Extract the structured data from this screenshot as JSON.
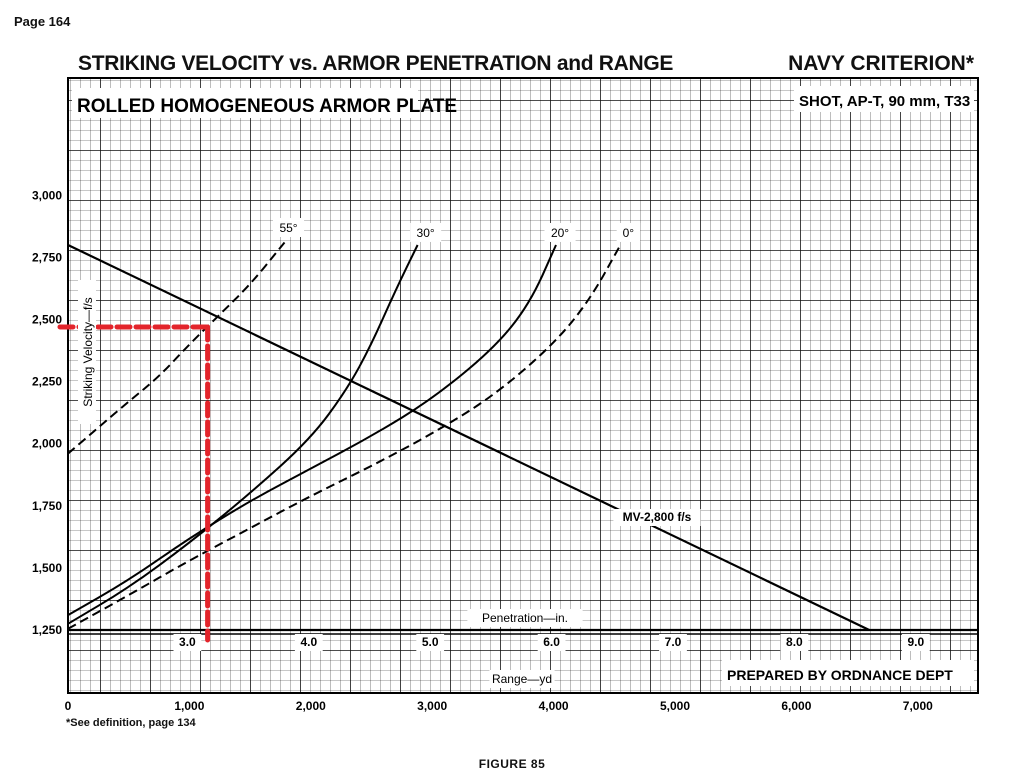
{
  "page": {
    "page_number": "Page 164",
    "title": "STRIKING VELOCITY vs. ARMOR PENETRATION and RANGE",
    "criterion": "NAVY CRITERION*",
    "figure": "FIGURE 85",
    "footnote": "*See definition, page 134"
  },
  "chart_data": {
    "type": "line",
    "plate_label": "ROLLED HOMOGENEOUS ARMOR PLATE",
    "projectile_label": "SHOT, AP-T, 90 mm, T33",
    "prepared_by": "PREPARED BY ORDNANCE DEPT",
    "ylabel": "Striking Velocity—f/s",
    "xlabel_range": "Range—yd",
    "xlabel_penetration": "Penetration—in.",
    "ylim": [
      1250,
      3500
    ],
    "xlim_range": [
      0,
      7500
    ],
    "y_ticks": [
      {
        "value": 1250,
        "label": "1,250"
      },
      {
        "value": 1500,
        "label": "1,500"
      },
      {
        "value": 1750,
        "label": "1,750"
      },
      {
        "value": 2000,
        "label": "2,000"
      },
      {
        "value": 2250,
        "label": "2,250"
      },
      {
        "value": 2500,
        "label": "2,500"
      },
      {
        "value": 2750,
        "label": "2,750"
      },
      {
        "value": 3000,
        "label": "3,000"
      }
    ],
    "range_ticks": [
      {
        "value": 0,
        "label": "0"
      },
      {
        "value": 1000,
        "label": "1,000"
      },
      {
        "value": 2000,
        "label": "2,000"
      },
      {
        "value": 3000,
        "label": "3,000"
      },
      {
        "value": 4000,
        "label": "4,000"
      },
      {
        "value": 5000,
        "label": "5,000"
      },
      {
        "value": 6000,
        "label": "6,000"
      },
      {
        "value": 7000,
        "label": "7,000"
      }
    ],
    "penetration_ticks": [
      {
        "value": 3.0,
        "label": "3.0",
        "range_equiv": 1000
      },
      {
        "value": 4.0,
        "label": "4.0",
        "range_equiv": 2000
      },
      {
        "value": 5.0,
        "label": "5.0",
        "range_equiv": 3000
      },
      {
        "value": 6.0,
        "label": "6.0",
        "range_equiv": 4000
      },
      {
        "value": 7.0,
        "label": "7.0",
        "range_equiv": 5000
      },
      {
        "value": 8.0,
        "label": "8.0",
        "range_equiv": 6000
      },
      {
        "value": 9.0,
        "label": "9.0",
        "range_equiv": 7000
      }
    ],
    "velocity_range_line": {
      "name": "MV-2,800 f/s",
      "range_yd": [
        0,
        6600
      ],
      "velocity_fs": [
        2800,
        1250
      ]
    },
    "penetration_curves": [
      {
        "name": "55°",
        "dashed": true,
        "points": [
          [
            0,
            1960
          ],
          [
            250,
            2065
          ],
          [
            500,
            2170
          ],
          [
            750,
            2270
          ],
          [
            1000,
            2400
          ],
          [
            1250,
            2520
          ],
          [
            1500,
            2640
          ],
          [
            1750,
            2790
          ],
          [
            1800,
            2820
          ]
        ]
      },
      {
        "name": "30°",
        "dashed": false,
        "points": [
          [
            0,
            1275
          ],
          [
            500,
            1420
          ],
          [
            1000,
            1600
          ],
          [
            1500,
            1800
          ],
          [
            2000,
            2020
          ],
          [
            2300,
            2220
          ],
          [
            2500,
            2400
          ],
          [
            2700,
            2620
          ],
          [
            2880,
            2800
          ]
        ]
      },
      {
        "name": "20°",
        "dashed": false,
        "points": [
          [
            0,
            1310
          ],
          [
            500,
            1450
          ],
          [
            1000,
            1620
          ],
          [
            1500,
            1770
          ],
          [
            2000,
            1900
          ],
          [
            2500,
            2030
          ],
          [
            3000,
            2180
          ],
          [
            3500,
            2380
          ],
          [
            3800,
            2560
          ],
          [
            4020,
            2800
          ]
        ]
      },
      {
        "name": "0°",
        "dashed": true,
        "points": [
          [
            0,
            1255
          ],
          [
            500,
            1390
          ],
          [
            1000,
            1530
          ],
          [
            1500,
            1660
          ],
          [
            2000,
            1790
          ],
          [
            2500,
            1910
          ],
          [
            3000,
            2040
          ],
          [
            3500,
            2190
          ],
          [
            4000,
            2400
          ],
          [
            4300,
            2580
          ],
          [
            4550,
            2800
          ]
        ]
      }
    ],
    "reading_lines": {
      "color": "#e3242b",
      "velocity_fs": 2470,
      "range_yd": 1150
    },
    "grid": true
  }
}
